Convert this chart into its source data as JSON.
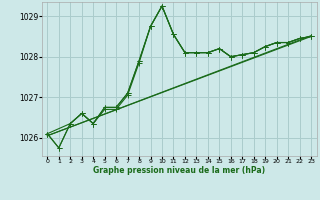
{
  "title": "Graphe pression niveau de la mer (hPa)",
  "background_color": "#cde8e8",
  "grid_color": "#aacccc",
  "line_color": "#1a6b1a",
  "marker_color": "#1a6b1a",
  "ylim": [
    1025.55,
    1029.35
  ],
  "xlim": [
    -0.5,
    23.5
  ],
  "yticks": [
    1026,
    1027,
    1028,
    1029
  ],
  "xticks": [
    0,
    1,
    2,
    3,
    4,
    5,
    6,
    7,
    8,
    9,
    10,
    11,
    12,
    13,
    14,
    15,
    16,
    17,
    18,
    19,
    20,
    21,
    22,
    23
  ],
  "series1_x": [
    0,
    1,
    2,
    3,
    4,
    5,
    6,
    7,
    8,
    9,
    10,
    11,
    12,
    13,
    14,
    15,
    16,
    17,
    18,
    19,
    20,
    21,
    22,
    23
  ],
  "series1_y": [
    1026.1,
    1025.75,
    1026.35,
    1026.6,
    1026.35,
    1026.7,
    1026.7,
    1027.05,
    1027.85,
    1028.75,
    1029.25,
    1028.55,
    1028.1,
    1028.1,
    1028.1,
    1028.2,
    1028.0,
    1028.05,
    1028.1,
    1028.25,
    1028.35,
    1028.35,
    1028.45,
    1028.5
  ],
  "series2_x": [
    0,
    1,
    2,
    3,
    4,
    5,
    6,
    7,
    8,
    9,
    10,
    11,
    12,
    13,
    14,
    15,
    16,
    17,
    18,
    19,
    20,
    21,
    22,
    23
  ],
  "series2_y": [
    1026.1,
    1025.75,
    1026.35,
    1026.6,
    1026.35,
    1026.75,
    1026.75,
    1027.1,
    1027.9,
    1028.75,
    1029.25,
    1028.55,
    1028.1,
    1028.1,
    1028.1,
    1028.2,
    1028.0,
    1028.05,
    1028.1,
    1028.25,
    1028.35,
    1028.35,
    1028.45,
    1028.5
  ],
  "series3_x": [
    0,
    2,
    3,
    4,
    5,
    6,
    7,
    8,
    9,
    10,
    11,
    12,
    13,
    14,
    15,
    16,
    17,
    18,
    19,
    20,
    21,
    22,
    23
  ],
  "series3_y": [
    1026.1,
    1026.35,
    1026.6,
    1026.35,
    1026.75,
    1026.75,
    1027.1,
    1027.9,
    1028.75,
    1029.25,
    1028.55,
    1028.1,
    1028.1,
    1028.1,
    1028.2,
    1028.0,
    1028.05,
    1028.1,
    1028.25,
    1028.35,
    1028.35,
    1028.45,
    1028.5
  ],
  "trend_x": [
    0,
    23
  ],
  "trend_y": [
    1026.05,
    1028.5
  ],
  "trend2_x": [
    0,
    23
  ],
  "trend2_y": [
    1026.05,
    1028.52
  ]
}
